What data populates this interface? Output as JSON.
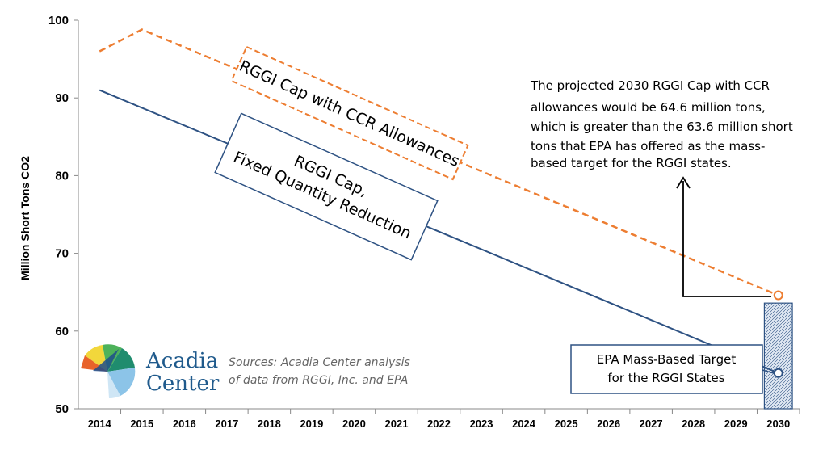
{
  "chart_data": {
    "type": "line",
    "ylabel": "Million Short Tons CO2",
    "ylim": [
      50,
      100
    ],
    "yticks": [
      50,
      60,
      70,
      80,
      90,
      100
    ],
    "categories": [
      "2014",
      "2015",
      "2016",
      "2017",
      "2018",
      "2019",
      "2020",
      "2021",
      "2022",
      "2023",
      "2024",
      "2025",
      "2026",
      "2027",
      "2028",
      "2029",
      "2030"
    ],
    "series": [
      {
        "name": "RGGI Cap with CCR Allowances",
        "style": "dashed",
        "color": "#ed7d31",
        "x": [
          "2014",
          "2015",
          "2030"
        ],
        "values": [
          96.0,
          98.8,
          64.6
        ]
      },
      {
        "name": "RGGI Cap, Fixed Quantity Reduction",
        "style": "solid",
        "color": "#2e5283",
        "x": [
          "2014",
          "2030"
        ],
        "values": [
          91.0,
          54.6
        ]
      }
    ],
    "epa_bar": {
      "category": "2030",
      "value": 63.6,
      "color": "#2e5283"
    },
    "labels": {
      "ccr_box": "RGGI Cap with CCR Allowances",
      "fixed_box": [
        "RGGI Cap,",
        "Fixed Quantity Reduction"
      ],
      "epa_box": [
        "EPA Mass-Based Target",
        "for the RGGI States"
      ]
    },
    "annotation": [
      "The projected 2030 RGGI Cap with CCR",
      "allowances would be 64.6 million tons,",
      "which is greater than the 63.6 million short",
      "tons that EPA has offered as the mass-",
      "based target for the RGGI states."
    ]
  },
  "logo": {
    "line1": "Acadia",
    "line2": "Center"
  },
  "sources": [
    "Sources: Acadia Center analysis",
    "of data from RGGI, Inc. and EPA"
  ]
}
